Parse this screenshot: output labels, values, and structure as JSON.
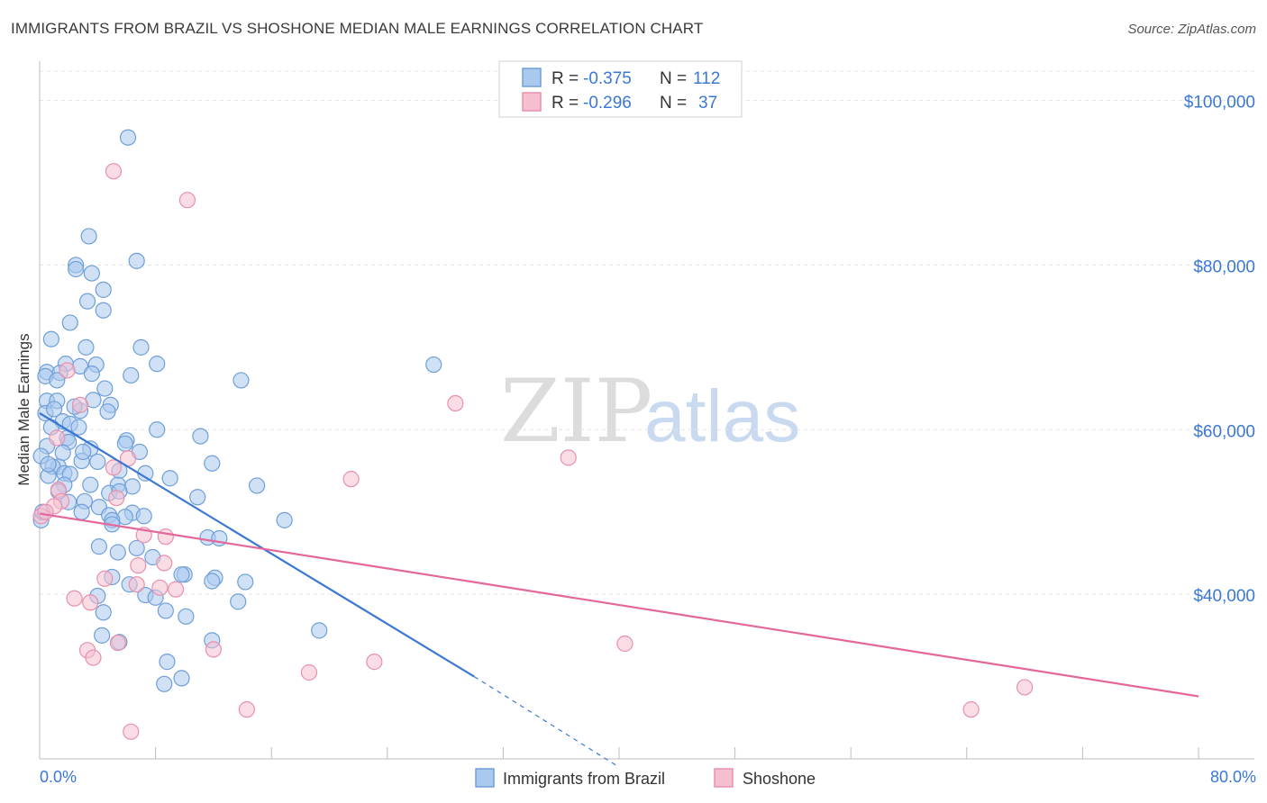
{
  "title": "IMMIGRANTS FROM BRAZIL VS SHOSHONE MEDIAN MALE EARNINGS CORRELATION CHART",
  "source": "Source: ZipAtlas.com",
  "watermark": {
    "zip": "ZIP",
    "atlas": "atlas"
  },
  "colors": {
    "brazil_fill": "#a9c9ef",
    "brazil_stroke": "#6f9fd8",
    "brazil_line": "#3a78d4",
    "shoshone_fill": "#f6bfd0",
    "shoshone_stroke": "#e890ad",
    "shoshone_line": "#e2679a",
    "axis_text": "#3a78d4",
    "grid": "#e3e3e3"
  },
  "legend_top": {
    "rows": [
      {
        "r_label": "R = ",
        "r_value": "-0.375",
        "n_label": "N = ",
        "n_value": "112"
      },
      {
        "r_label": "R = ",
        "r_value": "-0.296",
        "n_label": "N = ",
        "n_value": "37"
      }
    ]
  },
  "chart_data": {
    "type": "scatter",
    "title": "IMMIGRANTS FROM BRAZIL VS SHOSHONE MEDIAN MALE EARNINGS CORRELATION CHART",
    "xlabel": "",
    "ylabel": "Median Male Earnings",
    "xlim": [
      0,
      80
    ],
    "ylim": [
      20000,
      104000
    ],
    "x_tick_labels": [
      "0.0%",
      "80.0%"
    ],
    "y_ticks": [
      40000,
      60000,
      80000,
      100000
    ],
    "y_tick_labels": [
      "$40,000",
      "$60,000",
      "$80,000",
      "$100,000"
    ],
    "grid": true,
    "legend_position": "bottom-center",
    "series": [
      {
        "name": "Immigrants from Brazil",
        "r": -0.375,
        "n": 112,
        "trend": {
          "x0": 0,
          "y0": 62000,
          "x1": 30,
          "y1": 30000,
          "dash_x1": 40,
          "dash_y1": 19000
        },
        "points": [
          [
            6.1,
            95500
          ],
          [
            3.4,
            83500
          ],
          [
            6.7,
            80500
          ],
          [
            2.5,
            80000
          ],
          [
            2.5,
            79500
          ],
          [
            3.6,
            79000
          ],
          [
            4.4,
            77000
          ],
          [
            3.3,
            75600
          ],
          [
            4.4,
            74500
          ],
          [
            2.1,
            73000
          ],
          [
            0.8,
            71000
          ],
          [
            3.2,
            70000
          ],
          [
            7.0,
            70000
          ],
          [
            0.5,
            67000
          ],
          [
            1.8,
            68000
          ],
          [
            2.8,
            67700
          ],
          [
            3.9,
            67900
          ],
          [
            8.1,
            68000
          ],
          [
            27.2,
            67900
          ],
          [
            1.4,
            66900
          ],
          [
            0.4,
            66500
          ],
          [
            1.2,
            66000
          ],
          [
            3.6,
            66800
          ],
          [
            6.3,
            66600
          ],
          [
            13.9,
            66000
          ],
          [
            4.5,
            65000
          ],
          [
            0.5,
            63500
          ],
          [
            1.2,
            63500
          ],
          [
            3.7,
            63600
          ],
          [
            4.9,
            63000
          ],
          [
            0.4,
            62000
          ],
          [
            1.0,
            62500
          ],
          [
            2.8,
            62300
          ],
          [
            4.7,
            62200
          ],
          [
            1.6,
            61000
          ],
          [
            2.1,
            60700
          ],
          [
            0.8,
            60300
          ],
          [
            2.7,
            60300
          ],
          [
            8.1,
            60000
          ],
          [
            11.1,
            59200
          ],
          [
            1.9,
            59000
          ],
          [
            2.0,
            58500
          ],
          [
            6.0,
            58700
          ],
          [
            5.9,
            58300
          ],
          [
            0.5,
            58000
          ],
          [
            3.5,
            57700
          ],
          [
            1.6,
            57200
          ],
          [
            6.9,
            57300
          ],
          [
            0.1,
            56800
          ],
          [
            2.9,
            56200
          ],
          [
            4.0,
            56100
          ],
          [
            11.9,
            55900
          ],
          [
            1.3,
            55500
          ],
          [
            0.9,
            55500
          ],
          [
            5.5,
            55000
          ],
          [
            1.7,
            54700
          ],
          [
            2.1,
            54600
          ],
          [
            7.3,
            54700
          ],
          [
            0.6,
            54400
          ],
          [
            9.0,
            54100
          ],
          [
            1.7,
            53300
          ],
          [
            3.5,
            53300
          ],
          [
            5.4,
            53300
          ],
          [
            6.4,
            53100
          ],
          [
            15.0,
            53200
          ],
          [
            4.8,
            52300
          ],
          [
            5.5,
            52500
          ],
          [
            10.9,
            51800
          ],
          [
            3.1,
            51300
          ],
          [
            2.0,
            51200
          ],
          [
            4.1,
            50600
          ],
          [
            2.9,
            50000
          ],
          [
            6.4,
            49900
          ],
          [
            4.8,
            49600
          ],
          [
            7.2,
            49500
          ],
          [
            5.9,
            49400
          ],
          [
            5.0,
            49000
          ],
          [
            16.9,
            49000
          ],
          [
            0.1,
            49000
          ],
          [
            5.0,
            48500
          ],
          [
            11.6,
            46900
          ],
          [
            12.4,
            46800
          ],
          [
            4.1,
            45800
          ],
          [
            6.7,
            45600
          ],
          [
            5.4,
            45100
          ],
          [
            7.8,
            44500
          ],
          [
            10.0,
            42400
          ],
          [
            9.8,
            42400
          ],
          [
            12.1,
            42000
          ],
          [
            5.0,
            42100
          ],
          [
            11.9,
            41600
          ],
          [
            14.2,
            41500
          ],
          [
            6.2,
            41200
          ],
          [
            4.0,
            39800
          ],
          [
            7.3,
            39900
          ],
          [
            8.0,
            39600
          ],
          [
            13.7,
            39100
          ],
          [
            8.7,
            38000
          ],
          [
            4.4,
            37800
          ],
          [
            10.1,
            37300
          ],
          [
            19.3,
            35600
          ],
          [
            4.3,
            35000
          ],
          [
            11.9,
            34400
          ],
          [
            5.5,
            34200
          ],
          [
            8.8,
            31800
          ],
          [
            9.8,
            29800
          ],
          [
            8.6,
            29100
          ],
          [
            0.2,
            50000
          ],
          [
            0.6,
            55800
          ],
          [
            1.3,
            52500
          ],
          [
            3.0,
            57300
          ],
          [
            2.4,
            62800
          ]
        ]
      },
      {
        "name": "Shoshone",
        "r": -0.296,
        "n": 37,
        "trend": {
          "x0": 0,
          "y0": 49800,
          "x1": 80,
          "y1": 27600
        },
        "points": [
          [
            5.1,
            91400
          ],
          [
            10.2,
            87900
          ],
          [
            1.9,
            67200
          ],
          [
            28.7,
            63200
          ],
          [
            2.8,
            63000
          ],
          [
            6.1,
            56500
          ],
          [
            36.5,
            56600
          ],
          [
            21.5,
            54000
          ],
          [
            5.1,
            55400
          ],
          [
            1.3,
            52700
          ],
          [
            5.3,
            51700
          ],
          [
            1.5,
            51300
          ],
          [
            1.0,
            50700
          ],
          [
            0.1,
            49500
          ],
          [
            7.2,
            47200
          ],
          [
            8.7,
            47000
          ],
          [
            8.6,
            43800
          ],
          [
            6.8,
            43500
          ],
          [
            4.5,
            41900
          ],
          [
            6.7,
            41200
          ],
          [
            8.3,
            40800
          ],
          [
            9.4,
            40600
          ],
          [
            2.4,
            39500
          ],
          [
            3.5,
            39000
          ],
          [
            40.4,
            34000
          ],
          [
            5.4,
            34100
          ],
          [
            12.0,
            33300
          ],
          [
            3.3,
            33200
          ],
          [
            3.7,
            32300
          ],
          [
            23.1,
            31800
          ],
          [
            18.6,
            30500
          ],
          [
            68.0,
            28700
          ],
          [
            14.3,
            26000
          ],
          [
            64.3,
            26000
          ],
          [
            6.3,
            23300
          ],
          [
            0.4,
            50000
          ],
          [
            1.2,
            59000
          ]
        ]
      }
    ]
  },
  "legend_bottom": {
    "items": [
      "Immigrants from Brazil",
      "Shoshone"
    ]
  }
}
